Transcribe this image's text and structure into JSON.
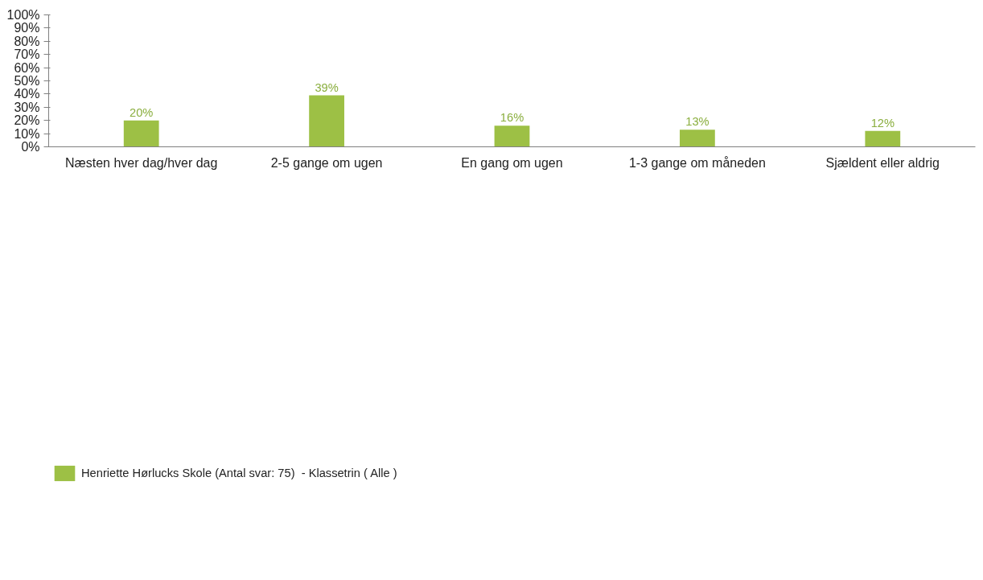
{
  "chart_data": {
    "type": "bar",
    "categories": [
      "Næsten hver dag/hver dag",
      "2-5 gange om ugen",
      "En gang om ugen",
      "1-3 gange om måneden",
      "Sjældent eller aldrig"
    ],
    "series": [
      {
        "name": "Henriette Hørlucks Skole (Antal svar: 75)  - Klassetrin ( Alle )",
        "color": "#9dc045",
        "values": [
          20,
          39,
          16,
          13,
          12
        ],
        "value_labels": [
          "20%",
          "39%",
          "16%",
          "13%",
          "12%"
        ]
      }
    ],
    "ylim": [
      0,
      100
    ],
    "yticks": [
      {
        "value": 0,
        "label": "0%"
      },
      {
        "value": 10,
        "label": "10%"
      },
      {
        "value": 20,
        "label": "20%"
      },
      {
        "value": 30,
        "label": "30%"
      },
      {
        "value": 40,
        "label": "40%"
      },
      {
        "value": 50,
        "label": "50%"
      },
      {
        "value": 60,
        "label": "60%"
      },
      {
        "value": 70,
        "label": "70%"
      },
      {
        "value": 80,
        "label": "80%"
      },
      {
        "value": 90,
        "label": "90%"
      },
      {
        "value": 100,
        "label": "100%"
      }
    ],
    "grid": false,
    "legend": "bottom left"
  }
}
